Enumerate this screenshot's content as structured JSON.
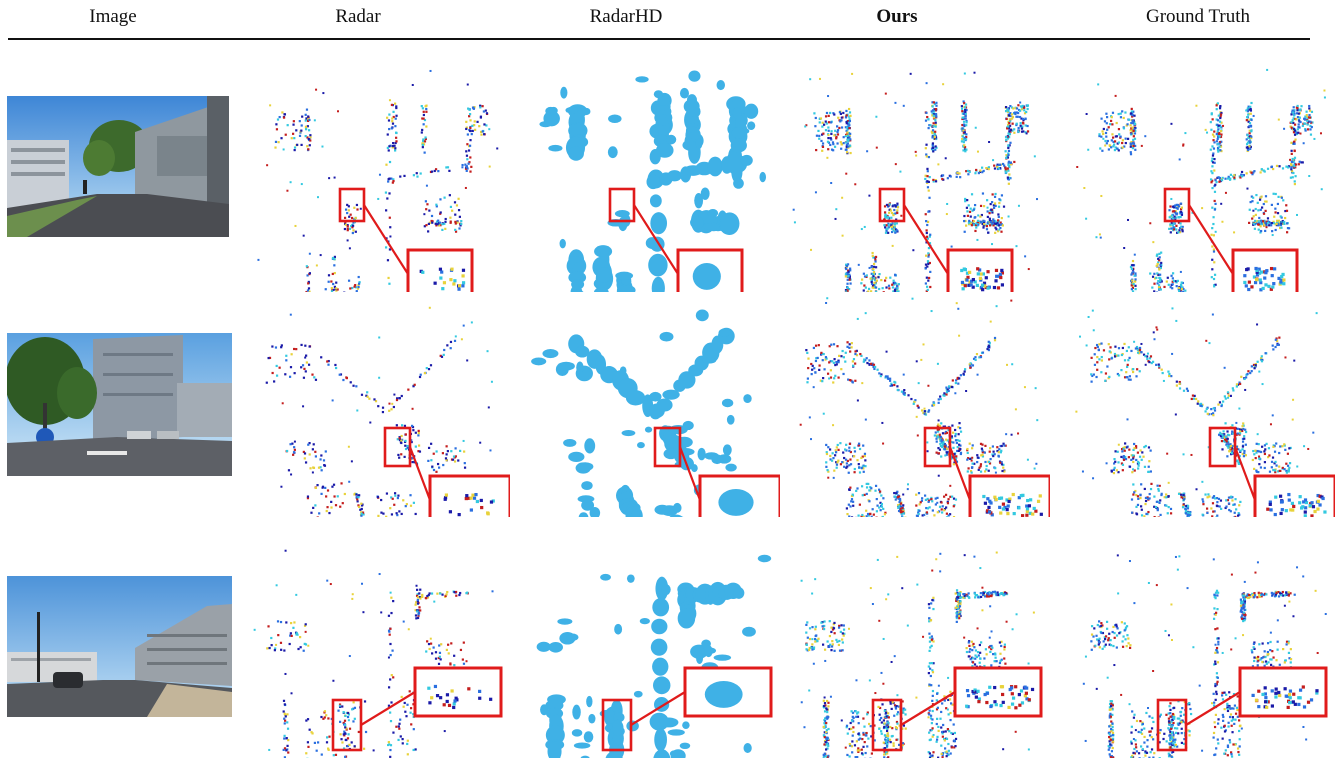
{
  "columns": [
    {
      "id": "image",
      "label": "Image",
      "bold": false
    },
    {
      "id": "radar",
      "label": "Radar",
      "bold": false
    },
    {
      "id": "radarhd",
      "label": "RadarHD",
      "bold": false
    },
    {
      "id": "ours",
      "label": "Ours",
      "bold": true
    },
    {
      "id": "gt",
      "label": "Ground Truth",
      "bold": false
    }
  ],
  "rows": [
    {
      "scene": "street-with-buildings-and-cyclist"
    },
    {
      "scene": "intersection-with-traffic-light"
    },
    {
      "scene": "road-with-parked-car-and-garage"
    }
  ],
  "colors": {
    "rule": "#111111",
    "zoom_box": "#e01b1b",
    "radarhd_blob": "#3fb1e6",
    "points_dark": "#1a1aa8",
    "points_mid": "#2a6fe0",
    "points_cyan": "#33c9e0",
    "points_yellow": "#e8d23a",
    "points_red": "#c41d1d"
  }
}
